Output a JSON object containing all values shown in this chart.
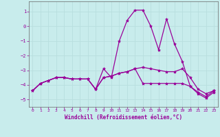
{
  "xlabel": "Windchill (Refroidissement éolien,°C)",
  "background_color": "#c8ecec",
  "line_color": "#990099",
  "grid_color": "#aadddd",
  "xlim": [
    -0.5,
    23.5
  ],
  "ylim": [
    -5.5,
    1.7
  ],
  "yticks": [
    1,
    0,
    -1,
    -2,
    -3,
    -4,
    -5
  ],
  "xticks": [
    0,
    1,
    2,
    3,
    4,
    5,
    6,
    7,
    8,
    9,
    10,
    11,
    12,
    13,
    14,
    15,
    16,
    17,
    18,
    19,
    20,
    21,
    22,
    23
  ],
  "line1_x": [
    0,
    1,
    2,
    3,
    4,
    5,
    6,
    7,
    8,
    9,
    10,
    11,
    12,
    13,
    14,
    15,
    16,
    17,
    18,
    19,
    20,
    21,
    22,
    23
  ],
  "line1_y": [
    -4.4,
    -3.9,
    -3.7,
    -3.5,
    -3.5,
    -3.6,
    -3.6,
    -3.6,
    -4.3,
    -2.9,
    -3.5,
    -1.0,
    0.4,
    1.1,
    1.1,
    0.0,
    -1.6,
    0.5,
    -1.2,
    -2.4,
    -4.1,
    -4.6,
    -4.9,
    -4.5
  ],
  "line2_x": [
    0,
    1,
    2,
    3,
    4,
    5,
    6,
    7,
    8,
    9,
    10,
    11,
    12,
    13,
    14,
    15,
    16,
    17,
    18,
    19,
    20,
    21,
    22,
    23
  ],
  "line2_y": [
    -4.4,
    -3.9,
    -3.7,
    -3.5,
    -3.5,
    -3.6,
    -3.6,
    -3.6,
    -4.3,
    -3.5,
    -3.4,
    -3.2,
    -3.1,
    -2.9,
    -2.8,
    -2.9,
    -3.0,
    -3.1,
    -3.1,
    -2.9,
    -3.5,
    -4.3,
    -4.6,
    -4.4
  ],
  "line3_x": [
    0,
    1,
    2,
    3,
    4,
    5,
    6,
    7,
    8,
    9,
    10,
    11,
    12,
    13,
    14,
    15,
    16,
    17,
    18,
    19,
    20,
    21,
    22,
    23
  ],
  "line3_y": [
    -4.4,
    -3.9,
    -3.7,
    -3.5,
    -3.5,
    -3.6,
    -3.6,
    -3.6,
    -4.3,
    -3.5,
    -3.4,
    -3.2,
    -3.1,
    -2.9,
    -3.9,
    -3.9,
    -3.9,
    -3.9,
    -3.9,
    -3.9,
    -4.1,
    -4.5,
    -4.8,
    -4.4
  ]
}
